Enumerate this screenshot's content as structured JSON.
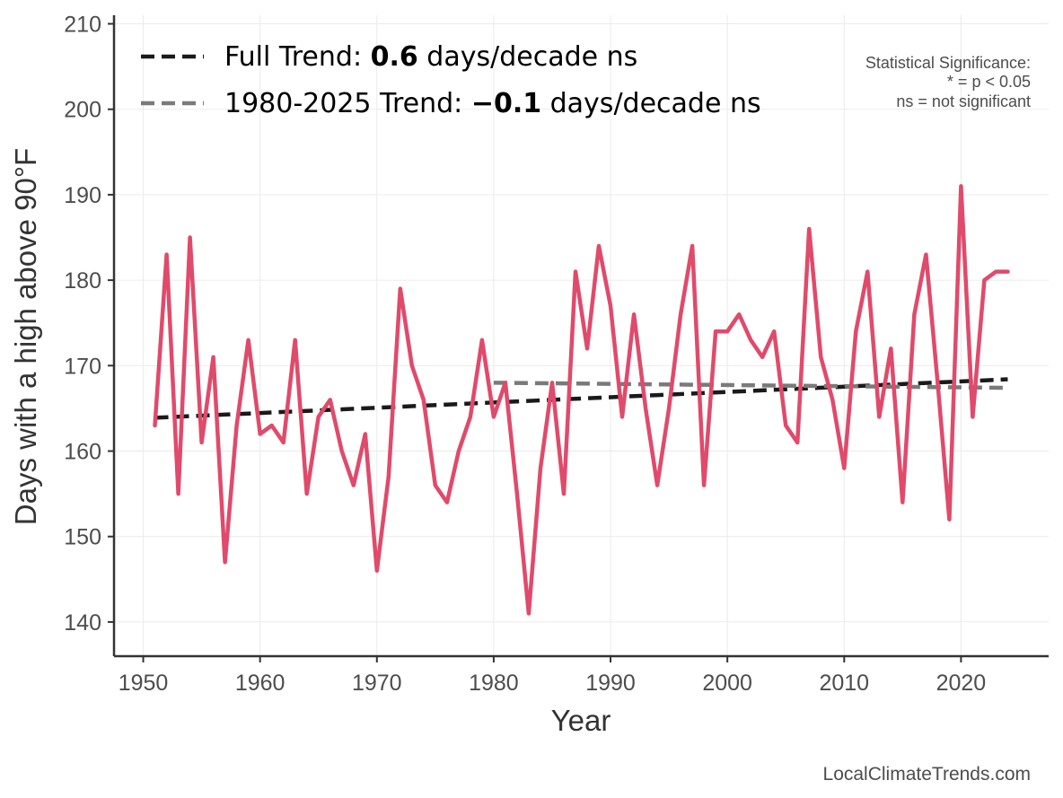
{
  "chart_data": {
    "type": "line",
    "xlabel": "Year",
    "ylabel": "Days with a high above 90°F",
    "xlim": [
      1947.5,
      2027.5
    ],
    "ylim": [
      136,
      211
    ],
    "xticks": [
      1950,
      1960,
      1970,
      1980,
      1990,
      2000,
      2010,
      2020
    ],
    "yticks": [
      140,
      150,
      160,
      170,
      180,
      190,
      200,
      210
    ],
    "grid": true,
    "legend_position": "top-left",
    "series": [
      {
        "color": "#e04a6b",
        "x": [
          1951,
          1952,
          1953,
          1954,
          1955,
          1956,
          1957,
          1958,
          1959,
          1960,
          1961,
          1962,
          1963,
          1964,
          1965,
          1966,
          1967,
          1968,
          1969,
          1970,
          1971,
          1972,
          1973,
          1974,
          1975,
          1976,
          1977,
          1978,
          1979,
          1980,
          1981,
          1982,
          1983,
          1984,
          1985,
          1986,
          1987,
          1988,
          1989,
          1990,
          1991,
          1992,
          1993,
          1994,
          1995,
          1996,
          1997,
          1998,
          1999,
          2000,
          2001,
          2002,
          2003,
          2004,
          2005,
          2006,
          2007,
          2008,
          2009,
          2010,
          2011,
          2012,
          2013,
          2014,
          2015,
          2016,
          2017,
          2018,
          2019,
          2020,
          2021,
          2022,
          2023,
          2024
        ],
        "y": [
          163,
          183,
          155,
          185,
          161,
          171,
          147,
          163,
          173,
          162,
          163,
          161,
          173,
          155,
          164,
          166,
          160,
          156,
          162,
          146,
          157,
          179,
          170,
          166,
          156,
          154,
          160,
          164,
          173,
          164,
          168,
          155,
          141,
          158,
          168,
          155,
          181,
          172,
          184,
          177,
          164,
          176,
          165,
          156,
          165,
          176,
          184,
          156,
          174,
          174,
          176,
          173,
          171,
          174,
          163,
          161,
          186,
          171,
          166,
          158,
          174,
          181,
          164,
          172,
          154,
          176,
          183,
          168,
          152,
          191,
          164,
          180,
          181,
          181
        ]
      }
    ],
    "trend_lines": [
      {
        "color": "#1a1a1a",
        "x": [
          1951,
          2024
        ],
        "y": [
          163.9,
          168.4
        ]
      },
      {
        "color": "#7a7a7a",
        "x": [
          1980,
          2024
        ],
        "y": [
          168.0,
          167.4
        ]
      }
    ],
    "legend": [
      {
        "color": "#1a1a1a",
        "prefix": "Full Trend: ",
        "value": "0.6",
        "suffix": " days/decade ns"
      },
      {
        "color": "#7a7a7a",
        "prefix": "1980-2025 Trend: ",
        "value": "−0.1",
        "suffix": " days/decade ns"
      }
    ],
    "significance_note": [
      "Statistical Significance:",
      "* = p < 0.05",
      "ns = not significant"
    ],
    "credit": "LocalClimateTrends.com"
  }
}
